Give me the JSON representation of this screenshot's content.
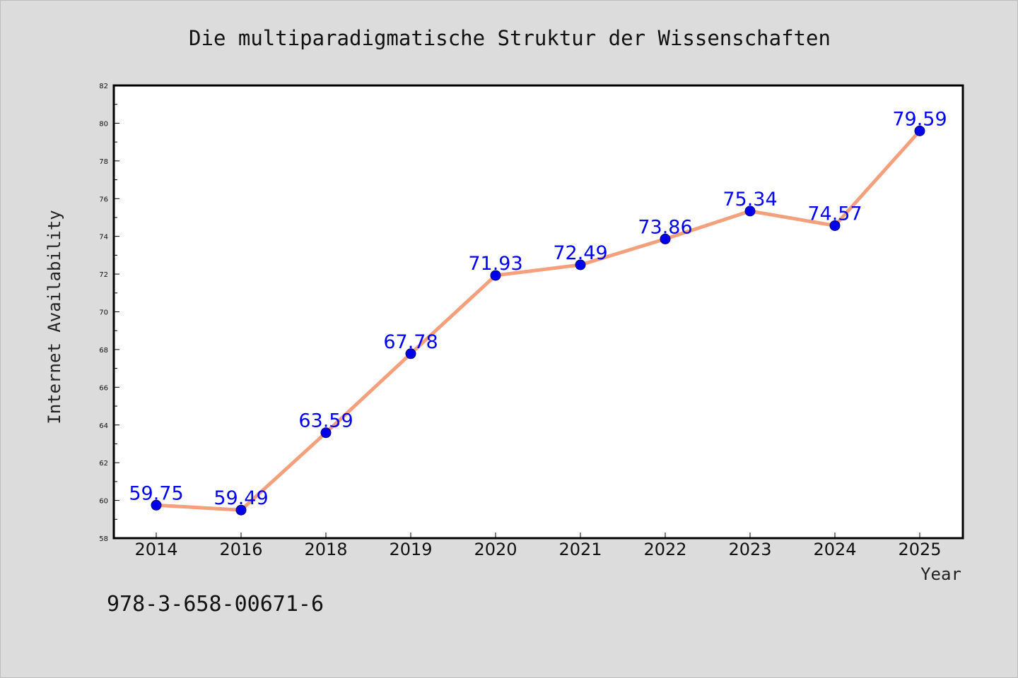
{
  "chart_data": {
    "type": "line",
    "title": "Die multiparadigmatische Struktur der Wissenschaften",
    "xlabel": "Year",
    "ylabel": "Internet Availability",
    "categories": [
      "2014",
      "2016",
      "2018",
      "2019",
      "2020",
      "2021",
      "2022",
      "2023",
      "2024",
      "2025"
    ],
    "series": [
      {
        "values": [
          59.75,
          59.49,
          63.59,
          67.78,
          71.93,
          72.49,
          73.86,
          75.34,
          74.57,
          79.59
        ],
        "line_color": "#f4a07c",
        "marker_color": "#0000ee"
      }
    ],
    "data_labels": [
      "59.75",
      "59.49",
      "63.59",
      "67.78",
      "71.93",
      "72.49",
      "73.86",
      "75.34",
      "74.57",
      "79.59"
    ],
    "ylim": [
      58,
      82
    ],
    "yticks": [
      "58",
      "60",
      "62",
      "64",
      "66",
      "68",
      "70",
      "72",
      "74",
      "76",
      "78",
      "80",
      "82"
    ],
    "grid": false,
    "legend": "none"
  },
  "footnote": "978-3-658-00671-6",
  "colors": {
    "background": "#dcdcdc",
    "plot_background": "#ffffff",
    "data_label": "#0000ff"
  }
}
